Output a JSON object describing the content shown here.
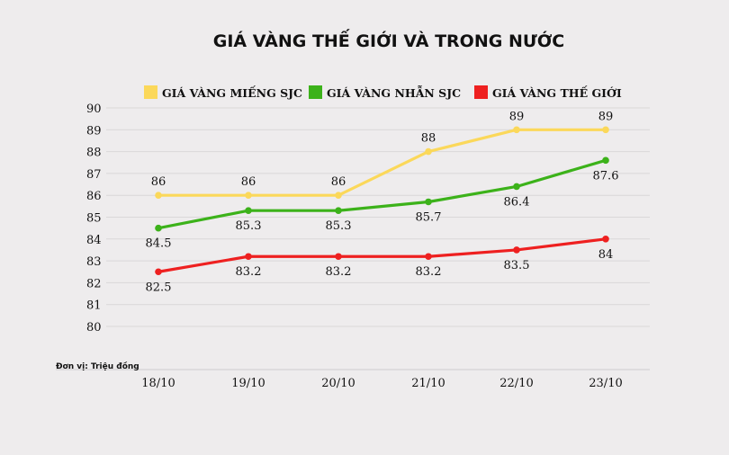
{
  "chart_data": {
    "type": "line",
    "title": "GIÁ VÀNG THẾ GIỚI VÀ TRONG NƯỚC",
    "unit_note": "Đơn vị: Triệu đồng",
    "categories": [
      "18/10",
      "19/10",
      "20/10",
      "21/10",
      "22/10",
      "23/10"
    ],
    "ylim": [
      80,
      90
    ],
    "yticks": [
      "80",
      "81",
      "82",
      "83",
      "84",
      "85",
      "86",
      "87",
      "88",
      "89",
      "90"
    ],
    "grid": true,
    "legend_position": "top",
    "series": [
      {
        "name": "GIÁ VÀNG MIẾNG SJC",
        "color": "#fbd85a",
        "values": [
          86,
          86,
          86,
          88,
          89,
          89
        ],
        "labels": [
          "86",
          "86",
          "86",
          "88",
          "89",
          "89"
        ],
        "label_position": "above"
      },
      {
        "name": "GIÁ VÀNG NHẪN SJC",
        "color": "#3cb21a",
        "values": [
          84.5,
          85.3,
          85.3,
          85.7,
          86.4,
          87.6
        ],
        "labels": [
          "84.5",
          "85.3",
          "85.3",
          "85.7",
          "86.4",
          "87.6"
        ],
        "label_position": "below"
      },
      {
        "name": "GIÁ VÀNG THẾ GIỚI",
        "color": "#ee2020",
        "values": [
          82.5,
          83.2,
          83.2,
          83.2,
          83.5,
          84
        ],
        "labels": [
          "82.5",
          "83.2",
          "83.2",
          "83.2",
          "83.5",
          "84"
        ],
        "label_position": "below"
      }
    ]
  }
}
